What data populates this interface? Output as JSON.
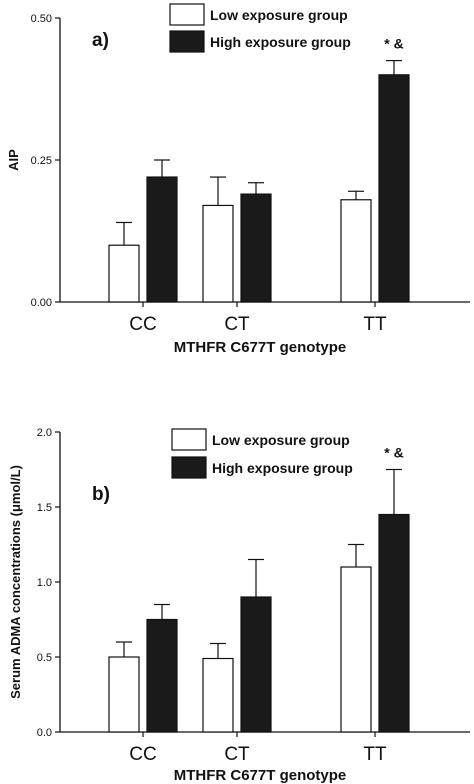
{
  "chart_data": [
    {
      "type": "bar",
      "panel_label": "a)",
      "categories": [
        "CC",
        "CT",
        "TT"
      ],
      "xlabel": "MTHFR C677T genotype",
      "ylabel": "AIP",
      "ylim": [
        0,
        0.5
      ],
      "yticks": [
        "0.00",
        "0.25",
        "0.50"
      ],
      "legend_position": "top-center",
      "series": [
        {
          "name": "Low exposure group",
          "color": "#ffffff",
          "values": [
            0.1,
            0.17,
            0.18
          ],
          "errors": [
            0.04,
            0.05,
            0.015
          ]
        },
        {
          "name": "High exposure group",
          "color": "#1a1a1a",
          "values": [
            0.22,
            0.19,
            0.4
          ],
          "errors": [
            0.03,
            0.02,
            0.025
          ]
        }
      ],
      "annotations": [
        {
          "text": "* &",
          "category": "TT",
          "series": 1
        }
      ]
    },
    {
      "type": "bar",
      "panel_label": "b)",
      "categories": [
        "CC",
        "CT",
        "TT"
      ],
      "xlabel": "MTHFR C677T genotype",
      "ylabel": "Serum ADMA concentrations (μmol/L)",
      "ylim": [
        0,
        2.0
      ],
      "yticks": [
        "0.0",
        "0.5",
        "1.0",
        "1.5",
        "2.0"
      ],
      "legend_position": "top-center",
      "series": [
        {
          "name": "Low exposure group",
          "color": "#ffffff",
          "values": [
            0.5,
            0.49,
            1.1
          ],
          "errors": [
            0.1,
            0.1,
            0.15
          ]
        },
        {
          "name": "High exposure group",
          "color": "#1a1a1a",
          "values": [
            0.75,
            0.9,
            1.45
          ],
          "errors": [
            0.1,
            0.25,
            0.3
          ]
        }
      ],
      "annotations": [
        {
          "text": "* &",
          "category": "TT",
          "series": 1
        }
      ]
    }
  ]
}
